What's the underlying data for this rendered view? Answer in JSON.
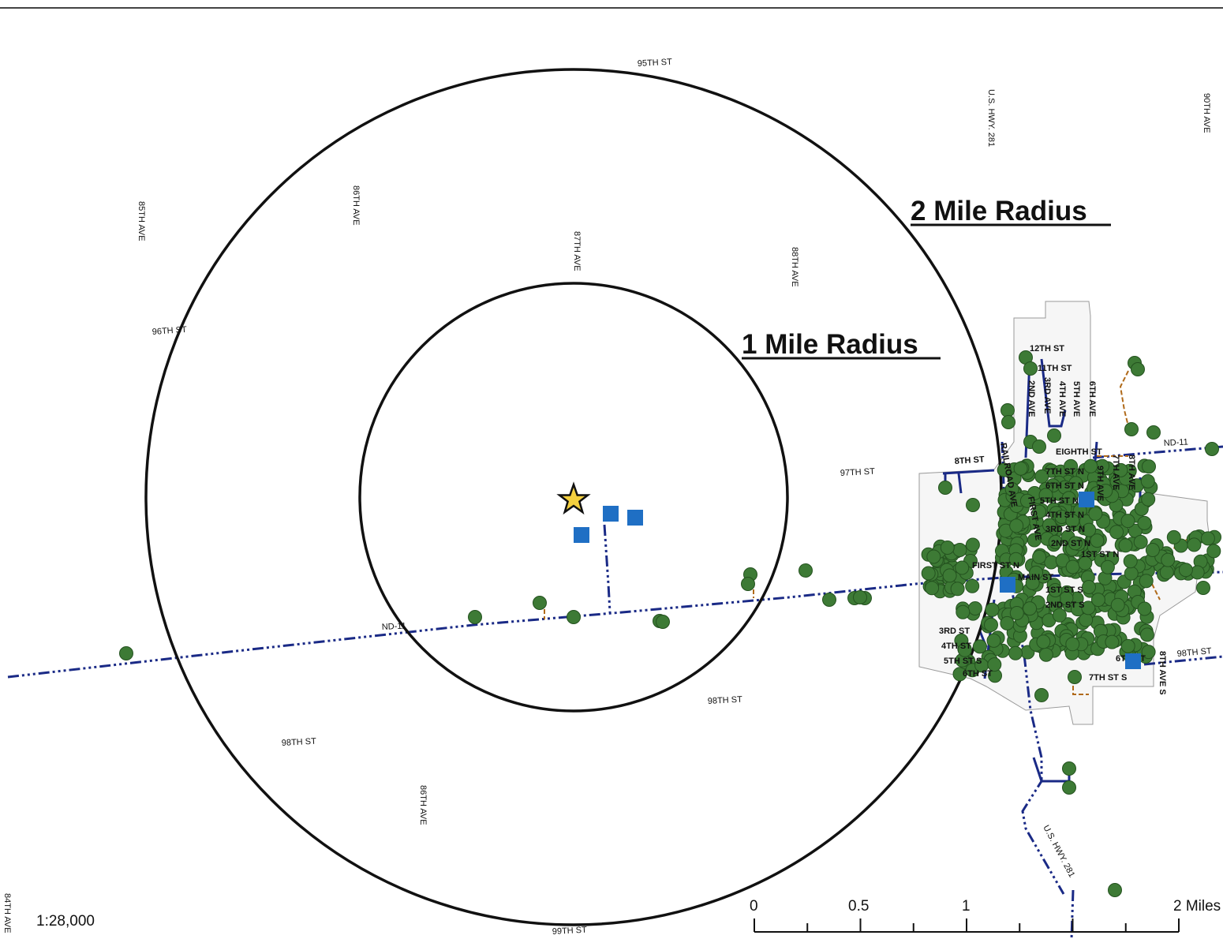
{
  "rings": [
    {
      "label": "1 Mile Radius"
    },
    {
      "label": "2 Mile Radius"
    }
  ],
  "scale": {
    "ratio": "1:28,000",
    "ticks": [
      "0",
      "0.5",
      "1",
      "2 Miles"
    ]
  },
  "streets": {
    "s95": "95TH ST",
    "s96": "96TH ST",
    "s97": "97TH ST",
    "s98a": "98TH ST",
    "s98b": "98TH ST",
    "s98c": "98TH ST",
    "s99": "99TH ST",
    "a84": "84TH AVE",
    "a85": "85TH AVE",
    "a86a": "86TH AVE",
    "a86b": "86TH AVE",
    "a87": "87TH AVE",
    "a88": "88TH AVE",
    "a90": "90TH AVE",
    "hwy281a": "U.S. HWY. 281",
    "hwy281b": "U.S. HWY. 281",
    "nd11a": "ND-11",
    "nd11b": "ND-11"
  },
  "town_streets": {
    "s12": "12TH ST",
    "s11": "11TH ST",
    "s8": "8TH ST",
    "eighth": "EIGHTH ST",
    "s7n": "7TH ST N",
    "s6n": "6TH ST N",
    "s5n": "5TH ST N",
    "s4n": "4TH ST N",
    "s3n": "3RD ST N",
    "s2n": "2ND ST N",
    "s1n": "1ST ST N",
    "firstn": "FIRST ST N",
    "main": "MAIN ST",
    "s1s": "1ST ST S",
    "s2s": "2ND ST S",
    "s3": "3RD ST",
    "s4": "4TH ST",
    "s5": "5TH ST S",
    "s6": "6TH ST",
    "s6s": "6TH ST",
    "s7s": "7TH ST S",
    "a2": "2ND AVE",
    "a3": "3RD AVE",
    "a4": "4TH AVE",
    "a5": "5TH AVE",
    "a6": "6TH AVE",
    "a7": "7TH AVE",
    "a8": "8TH AVE",
    "a9": "9TH AVE",
    "rr": "RAILROAD AVE",
    "first": "FIRST AVE",
    "a8s": "8TH AVE S"
  },
  "colors": {
    "ring": "#111111",
    "road": "#1a2a86",
    "private_line": "#b06a1a",
    "tree": "#3d7a35",
    "well": "#1f6fc4",
    "site_star": "#f4d03f",
    "town_boundary": "#9a9a9a"
  },
  "symbols": {
    "site": "star-icon",
    "well": "square-icon",
    "tree": "circle-icon"
  }
}
